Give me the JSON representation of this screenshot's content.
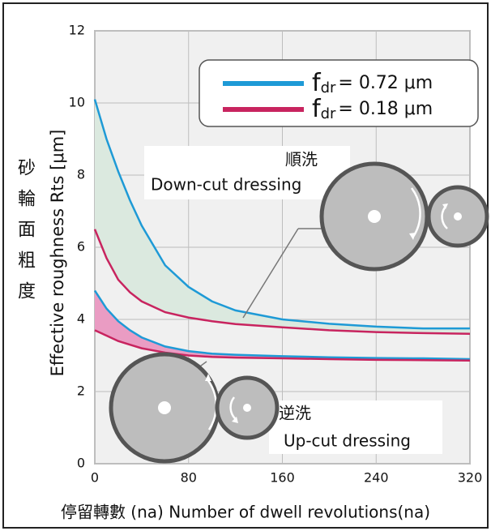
{
  "chart_data": {
    "type": "line",
    "ylabel": "Effective roughness Rts [μm]",
    "ylabel_zh": "砂輪面粗度",
    "xlabel": "停留轉數 (na) Number of dwell revolutions(na)",
    "x": [
      0,
      10,
      20,
      30,
      40,
      60,
      80,
      100,
      120,
      160,
      200,
      240,
      280,
      320
    ],
    "series": [
      {
        "name": "f",
        "name_sub": "dr",
        "name_rest": "= 0.72 μm",
        "color": "#1e9ad6",
        "down_cut": [
          10.1,
          9.0,
          8.1,
          7.3,
          6.6,
          5.5,
          4.9,
          4.5,
          4.25,
          4.0,
          3.88,
          3.8,
          3.75,
          3.75
        ],
        "up_cut": [
          4.8,
          4.3,
          3.95,
          3.7,
          3.5,
          3.25,
          3.12,
          3.05,
          3.02,
          2.98,
          2.95,
          2.93,
          2.92,
          2.9
        ]
      },
      {
        "name": "f",
        "name_sub": "dr",
        "name_rest": "= 0.18 μm",
        "color": "#c8245f",
        "down_cut": [
          6.5,
          5.7,
          5.1,
          4.75,
          4.5,
          4.2,
          4.05,
          3.95,
          3.87,
          3.78,
          3.7,
          3.65,
          3.62,
          3.6
        ],
        "up_cut": [
          3.7,
          3.55,
          3.4,
          3.3,
          3.2,
          3.08,
          3.0,
          2.96,
          2.94,
          2.92,
          2.9,
          2.88,
          2.87,
          2.86
        ]
      }
    ],
    "band_fills": {
      "down_cut": "#dbe9df",
      "up_cut": "#ea9cc3"
    },
    "annotations": {
      "down_cut_zh": "順洗",
      "down_cut": "Down-cut dressing",
      "up_cut_zh": "逆洗",
      "up_cut": "Up-cut dressing"
    },
    "xlim": [
      0,
      320
    ],
    "xticks": [
      0,
      80,
      160,
      240,
      320
    ],
    "ylim": [
      0,
      12
    ],
    "yticks": [
      0,
      2,
      4,
      6,
      8,
      10,
      12
    ],
    "grid": true
  }
}
